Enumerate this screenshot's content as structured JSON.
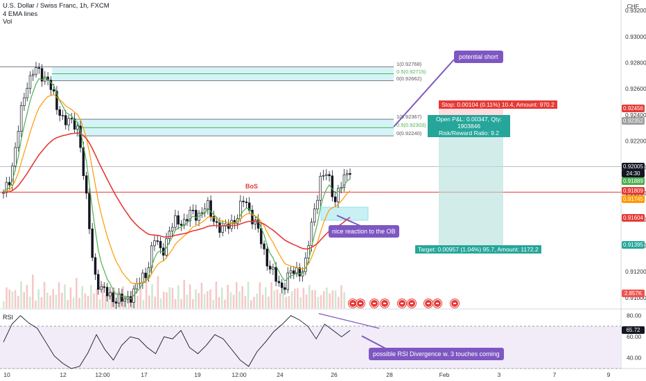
{
  "header": {
    "symbol_line": "U.S. Dollar / Swiss Franc, 1h, FXCM",
    "indicator_1": "4 EMA lines",
    "indicator_2": "Vol"
  },
  "currency_label": "CHF",
  "price_axis": {
    "ticks": [
      "0.93200",
      "0.93000",
      "0.92800",
      "0.92600",
      "0.92400",
      "0.92200",
      "0.92000",
      "0.91800",
      "0.91600",
      "0.91400",
      "0.91200",
      "0.91000"
    ],
    "ticks_values": [
      0.932,
      0.93,
      0.928,
      0.926,
      0.924,
      0.922,
      0.92,
      0.918,
      0.916,
      0.914,
      0.912,
      0.91
    ],
    "badges": [
      {
        "label": "0.92456",
        "value": 0.92456,
        "color": "#e53935"
      },
      {
        "label": "0.92352",
        "value": 0.92352,
        "color": "#9e9e9e"
      },
      {
        "label": "0.92005",
        "value": 0.92005,
        "color": "#131722"
      },
      {
        "label": "24:30",
        "value": 0.91945,
        "color": "#131722"
      },
      {
        "label": "0.91889",
        "value": 0.91889,
        "color": "#4caf50"
      },
      {
        "label": "0.91809",
        "value": 0.91809,
        "color": "#e53935"
      },
      {
        "label": "0.91745",
        "value": 0.91745,
        "color": "#ff9800"
      },
      {
        "label": "0.91604",
        "value": 0.91604,
        "color": "#e53935"
      },
      {
        "label": "0.91395",
        "value": 0.91395,
        "color": "#26a69a"
      },
      {
        "label": "2.857K",
        "value": 0.9098,
        "color": "#ef5350"
      }
    ]
  },
  "time_axis": {
    "labels": [
      "10",
      "12",
      "12:00",
      "17",
      "19",
      "12:00",
      "24",
      "26",
      "28",
      "Feb",
      "3",
      "7",
      "9"
    ]
  },
  "rsi": {
    "label": "RSI",
    "ticks": [
      "80.00",
      "60.00",
      "40.00"
    ],
    "ticks_values": [
      80,
      60,
      40
    ],
    "current": "65.72",
    "upper_band": 70,
    "lower_band": 30
  },
  "annotations": {
    "potential_short": "potential short",
    "nice_reaction": "nice reaction to the OB",
    "rsi_divergence": "possible RSI Divergence w. 3 touches coming",
    "bos": "BoS",
    "stop": "Stop: 0.00104 (0.11%) 10.4, Amount: 970.2",
    "open_pnl": "Open P&L: 0.00347, Qty: 1903846",
    "risk_reward": "Risk/Reward Ratio: 9.2",
    "target": "Target: 0.00957 (1.04%) 95.7, Amount: 1172.2",
    "fib_top": [
      "1(0.92768)",
      "0.5(0.92715)",
      "0(0.92662)"
    ],
    "fib_mid": [
      "1(0.92367)",
      "0.5(0.92303)",
      "0(0.92240)"
    ]
  },
  "chart_data": {
    "type": "candlestick",
    "title": "U.S. Dollar / Swiss Franc, 1h, FXCM",
    "y_range": [
      0.9092,
      0.9328
    ],
    "x_labels": [
      "10",
      "12",
      "12:00",
      "17",
      "19",
      "12:00",
      "24",
      "26",
      "28",
      "Feb",
      "3",
      "7",
      "9"
    ],
    "close_series": [
      0.9178,
      0.9195,
      0.923,
      0.9262,
      0.9275,
      0.927,
      0.9268,
      0.9245,
      0.9238,
      0.9233,
      0.923,
      0.9175,
      0.912,
      0.9106,
      0.9102,
      0.9099,
      0.9097,
      0.9103,
      0.9111,
      0.912,
      0.9145,
      0.9135,
      0.915,
      0.916,
      0.9158,
      0.9165,
      0.9164,
      0.917,
      0.916,
      0.915,
      0.9158,
      0.916,
      0.9178,
      0.9161,
      0.9148,
      0.9128,
      0.9115,
      0.9108,
      0.9118,
      0.9121,
      0.9122,
      0.916,
      0.919,
      0.9195,
      0.9175,
      0.9188,
      0.92
    ],
    "levels": {
      "fib_top": [
        0.92768,
        0.92715,
        0.92662
      ],
      "fib_mid": [
        0.92367,
        0.92303,
        0.9224
      ],
      "bos": 0.91809,
      "entry": 0.92352,
      "stop": 0.92456,
      "target": 0.91395,
      "ob_zone": [
        0.9164,
        0.9172
      ]
    },
    "rsi_series": [
      55,
      72,
      80,
      73,
      68,
      55,
      42,
      35,
      30,
      32,
      45,
      62,
      48,
      38,
      52,
      60,
      58,
      50,
      44,
      60,
      58,
      66,
      50,
      44,
      52,
      62,
      58,
      48,
      38,
      32,
      46,
      55,
      65,
      72,
      80,
      76,
      70,
      58,
      72,
      66,
      60,
      66
    ],
    "rsi_divergence_line": [
      82,
      72
    ],
    "volume_relative": [
      0.3,
      0.55,
      0.7,
      0.45,
      0.6,
      0.35,
      0.8,
      0.5,
      0.65,
      0.4,
      0.9,
      0.3,
      0.5,
      0.45,
      0.7,
      0.55,
      0.35,
      0.6,
      0.4,
      0.75,
      0.5,
      0.65,
      0.3,
      0.55,
      0.45,
      0.8,
      0.4,
      0.6,
      0.5,
      0.35,
      0.7,
      0.45,
      0.55,
      0.3,
      0.65,
      0.5,
      0.4,
      0.75,
      0.55,
      0.6,
      0.45,
      0.7,
      0.35
    ]
  },
  "colors": {
    "bull": "#131722",
    "bear": "#131722",
    "ema_green": "#4caf50",
    "ema_orange": "#ff9800",
    "ema_red": "#e53935",
    "ema_teal": "#26a69a",
    "zone_fill": "#b2ebf2",
    "zone_stroke": "#26a69a",
    "callout": "#7e57c2",
    "rsi_band": "#ede7f6"
  }
}
